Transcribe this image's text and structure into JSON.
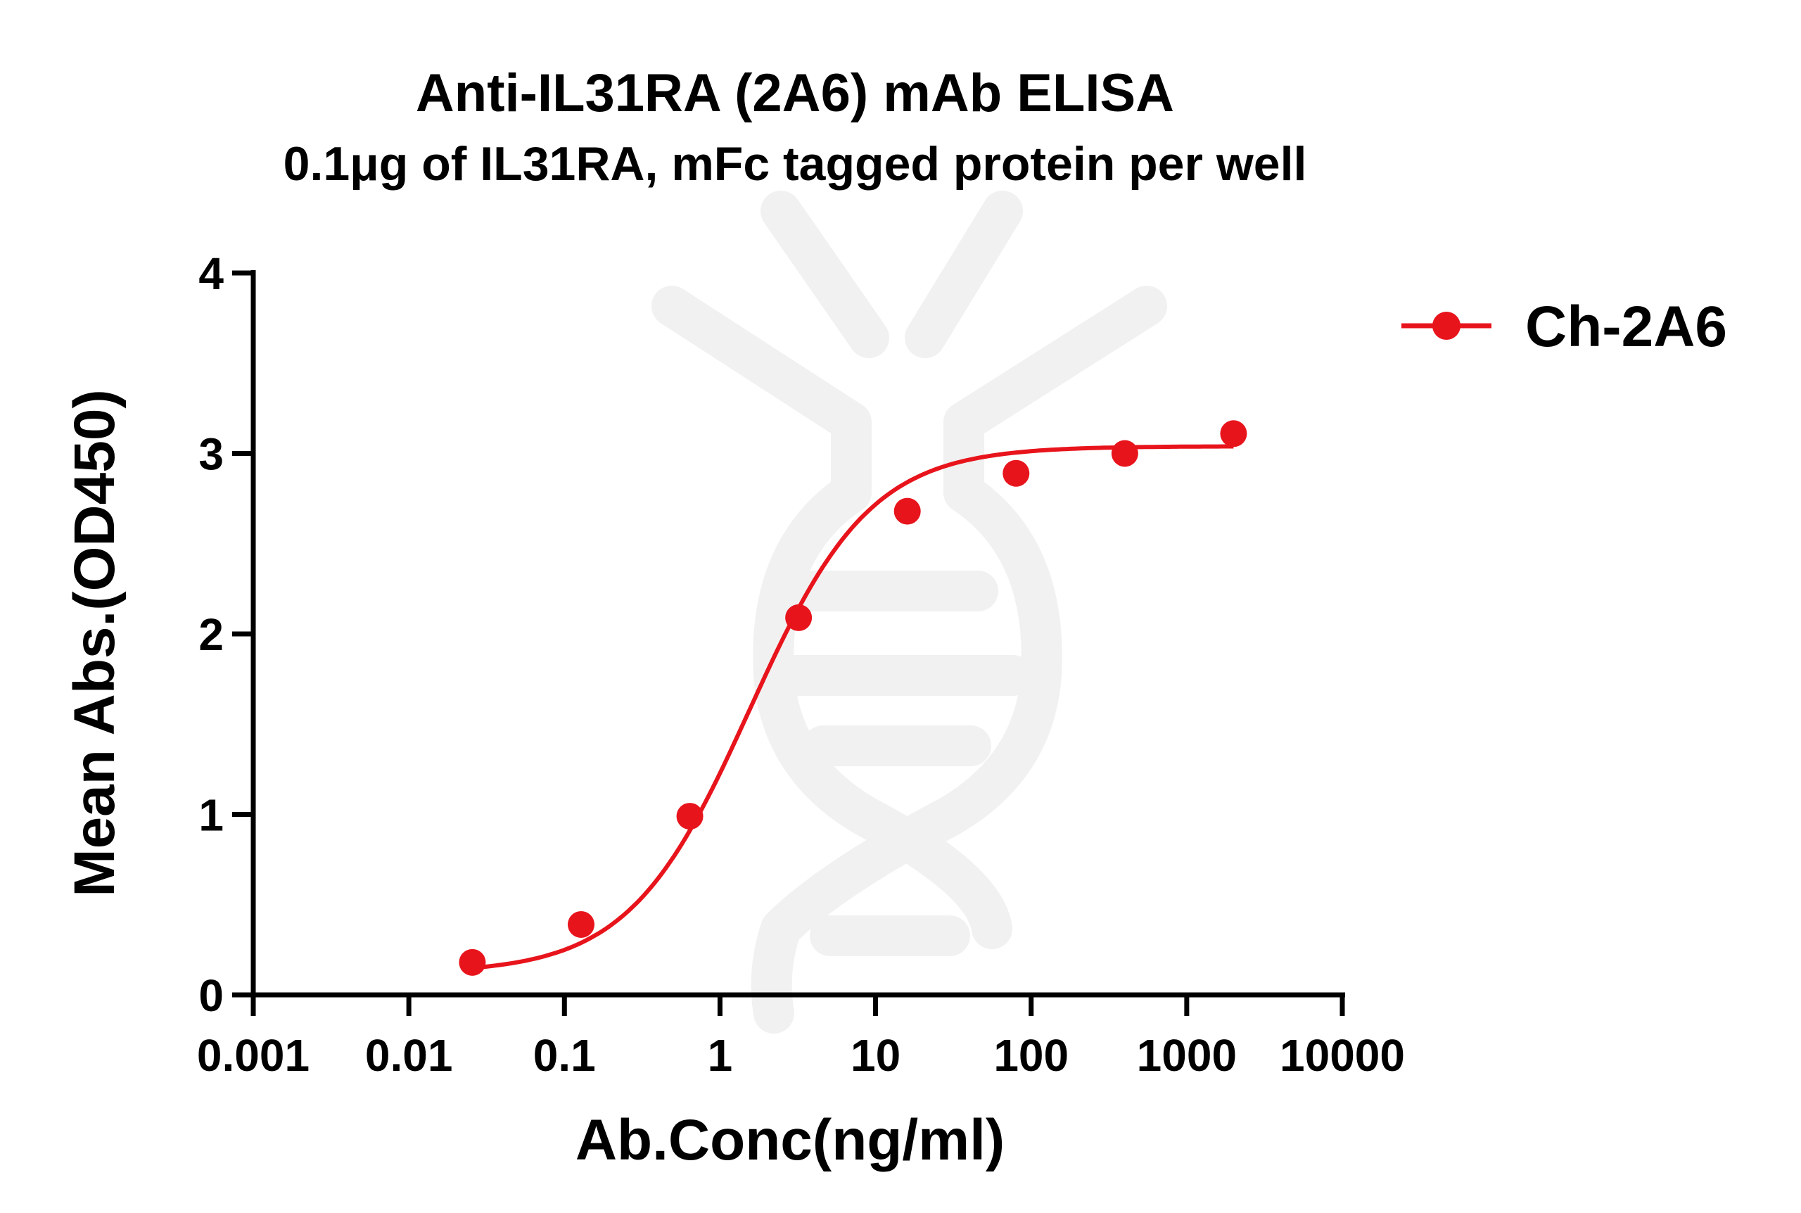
{
  "chart_data": {
    "type": "scatter",
    "title": "Anti-IL31RA (2A6) mAb ELISA",
    "subtitle": "0.1μg of IL31RA, mFc tagged protein per well",
    "xlabel": "Ab.Conc(ng/ml)",
    "ylabel": "Mean Abs.(OD450)",
    "x_scale": "log",
    "xlim": [
      0.001,
      10000
    ],
    "ylim": [
      0,
      4
    ],
    "x_ticks": [
      "0.001",
      "0.01",
      "0.1",
      "1",
      "10",
      "100",
      "1000",
      "10000"
    ],
    "y_ticks": [
      "0",
      "1",
      "2",
      "3",
      "4"
    ],
    "grid": false,
    "legend_position": "top-right",
    "series": [
      {
        "name": "Ch-2A6",
        "color": "#e8141c",
        "marker": "circle",
        "fit": "4PL sigmoidal curve",
        "x": [
          0.0256,
          0.128,
          0.64,
          3.2,
          16,
          80,
          400,
          2000
        ],
        "y": [
          0.18,
          0.39,
          0.99,
          2.09,
          2.68,
          2.89,
          3.0,
          3.11
        ]
      }
    ]
  }
}
